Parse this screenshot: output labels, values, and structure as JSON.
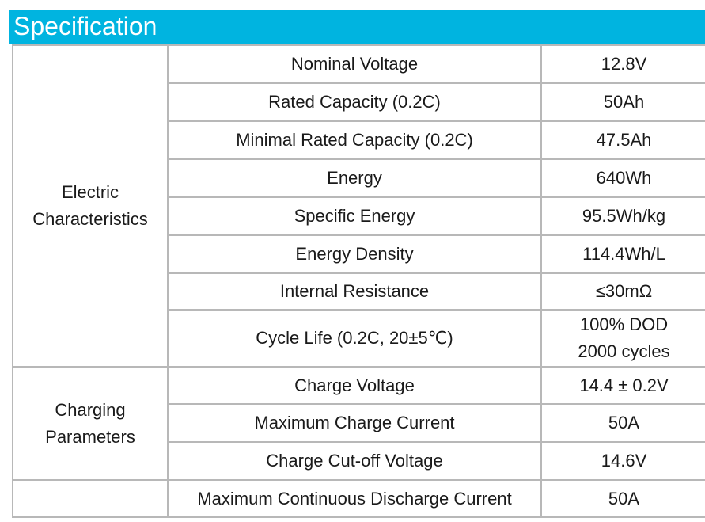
{
  "header": {
    "title": "Specification"
  },
  "spec": {
    "electric": {
      "group_line1": "Electric",
      "group_line2": "Characteristics",
      "rows": [
        {
          "param": "Nominal Voltage",
          "value": "12.8V"
        },
        {
          "param": "Rated Capacity (0.2C)",
          "value": "50Ah"
        },
        {
          "param": "Minimal Rated Capacity (0.2C)",
          "value": "47.5Ah"
        },
        {
          "param": "Energy",
          "value": "640Wh"
        },
        {
          "param": "Specific Energy",
          "value": "95.5Wh/kg"
        },
        {
          "param": "Energy Density",
          "value": "114.4Wh/L"
        },
        {
          "param": "Internal Resistance",
          "value": "≤30mΩ"
        },
        {
          "param": "Cycle Life (0.2C, 20±5℃)",
          "value_line1": "100% DOD",
          "value_line2": "2000 cycles"
        }
      ]
    },
    "charging": {
      "group_line1": "Charging",
      "group_line2": "Parameters",
      "rows": [
        {
          "param": "Charge Voltage",
          "value": "14.4 ± 0.2V"
        },
        {
          "param": "Maximum Charge Current",
          "value": "50A"
        },
        {
          "param": "Charge Cut-off Voltage",
          "value": "14.6V"
        }
      ]
    },
    "discharge": {
      "group": "",
      "rows": [
        {
          "param": "Maximum Continuous Discharge Current",
          "value": "50A"
        }
      ]
    }
  }
}
